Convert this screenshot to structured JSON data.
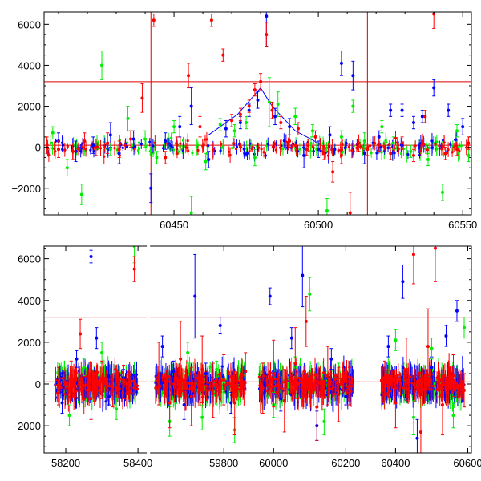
{
  "colors": {
    "red": "#ff0000",
    "green": "#00ee00",
    "blue": "#0000ff",
    "ref": "#dd0000",
    "axis": "#000000"
  },
  "chart_data": [
    {
      "type": "scatter",
      "title": "",
      "xlabel": "",
      "ylabel": "",
      "xlim": [
        60405,
        60553
      ],
      "ylim": [
        -3300,
        6600
      ],
      "x_ticks": [
        60450,
        60500,
        60550
      ],
      "y_ticks": [
        -2000,
        0,
        2000,
        4000,
        6000
      ],
      "hlines": [
        100,
        3200
      ],
      "vlines": [
        60442,
        60517
      ],
      "error_bars": true,
      "series": [
        {
          "color": "blue",
          "x": [
            60410,
            60416,
            60422,
            60428,
            60431,
            60436,
            60442,
            60447,
            60452,
            60456,
            60462,
            60468,
            60473,
            60476,
            60479,
            60482,
            60485,
            60490,
            60495,
            60500,
            60504,
            60508,
            60512,
            60516,
            60521,
            60525,
            60529,
            60533,
            60536,
            60540,
            60545,
            60550
          ],
          "y": [
            300,
            -200,
            100,
            600,
            -300,
            400,
            -2000,
            300,
            1000,
            2000,
            -600,
            900,
            1200,
            1800,
            2300,
            6400,
            1500,
            1000,
            -400,
            -100,
            600,
            4100,
            3500,
            -300,
            500,
            1800,
            1800,
            1200,
            1500,
            2900,
            1800,
            1000
          ],
          "err": [
            400,
            500,
            400,
            600,
            500,
            400,
            700,
            400,
            500,
            900,
            400,
            400,
            300,
            300,
            400,
            1500,
            400,
            400,
            600,
            400,
            400,
            600,
            700,
            500,
            300,
            300,
            300,
            300,
            300,
            400,
            300,
            400
          ]
        },
        {
          "color": "green",
          "x": [
            60408,
            60413,
            60418,
            60425,
            60428,
            60434,
            60440,
            60444,
            60450,
            60456,
            60461,
            60466,
            60471,
            60475,
            60478,
            60483,
            60486,
            60492,
            60498,
            60503,
            60508,
            60512,
            60516,
            60522,
            60526,
            60532,
            60538,
            60543,
            60548,
            60552
          ],
          "y": [
            700,
            -1000,
            -2300,
            4000,
            -100,
            1400,
            400,
            -500,
            1000,
            -3200,
            -700,
            1100,
            800,
            1200,
            -500,
            2200,
            2100,
            1500,
            800,
            -3100,
            500,
            2000,
            300,
            1000,
            200,
            -200,
            -600,
            -2200,
            800,
            -400
          ],
          "err": [
            300,
            400,
            500,
            700,
            300,
            600,
            400,
            300,
            300,
            800,
            400,
            300,
            300,
            300,
            400,
            1200,
            600,
            400,
            300,
            600,
            300,
            300,
            400,
            300,
            300,
            300,
            300,
            400,
            300,
            300
          ]
        },
        {
          "color": "red",
          "x": [
            60406,
            60410,
            60415,
            60419,
            60423,
            60427,
            60431,
            60435,
            60439,
            60443,
            60447,
            60451,
            60455,
            60459,
            60463,
            60467,
            60470,
            60473,
            60476,
            60478,
            60480,
            60482,
            60484,
            60487,
            60490,
            60493,
            60496,
            60499,
            60502,
            60505,
            60508,
            60511,
            60514,
            60517,
            60521,
            60525,
            60529,
            60533,
            60537,
            60540,
            60544,
            60548,
            60552
          ],
          "y": [
            100,
            -100,
            -200,
            300,
            0,
            200,
            -100,
            400,
            2400,
            6200,
            -500,
            100,
            3500,
            1000,
            6200,
            4500,
            1300,
            1600,
            2000,
            2800,
            3200,
            5500,
            1800,
            1200,
            300,
            900,
            -100,
            500,
            -300,
            -1200,
            -400,
            -3200,
            200,
            -100,
            100,
            -300,
            200,
            -400,
            1500,
            6500,
            -300,
            -100,
            200
          ],
          "err": [
            400,
            400,
            400,
            400,
            400,
            500,
            400,
            400,
            700,
            300,
            300,
            400,
            600,
            500,
            300,
            300,
            300,
            300,
            300,
            300,
            400,
            600,
            400,
            300,
            300,
            300,
            300,
            300,
            300,
            500,
            400,
            1000,
            400,
            300,
            300,
            300,
            300,
            300,
            300,
            700,
            300,
            300,
            300
          ]
        }
      ]
    },
    {
      "type": "scatter",
      "title": "",
      "xlabel": "",
      "ylabel": "",
      "xlim": [
        58120,
        60620
      ],
      "ylim": [
        -3300,
        6600
      ],
      "x_ticks": [
        58200,
        58400,
        59800,
        60000,
        60200,
        60400,
        60600
      ],
      "y_ticks": [
        -2000,
        0,
        2000,
        4000,
        6000
      ],
      "hlines": [
        100,
        3200
      ],
      "broken_axis": true,
      "segments": [
        [
          58140,
          58420
        ],
        [
          59600,
          59870
        ],
        [
          59950,
          60240
        ],
        [
          60320,
          60610
        ]
      ],
      "observing_seasons": [
        [
          58170,
          58400
        ],
        [
          59610,
          59860
        ],
        [
          59960,
          60220
        ],
        [
          60360,
          60590
        ]
      ],
      "error_bars": true,
      "series": [
        {
          "color": "blue",
          "x": [
            58190,
            58230,
            58270,
            58285,
            58320,
            58360,
            59630,
            59660,
            59690,
            59720,
            59750,
            59790,
            59820,
            59990,
            60020,
            60050,
            60080,
            60120,
            60160,
            60200,
            60380,
            60420,
            60460,
            60500,
            60540,
            60570
          ],
          "y": [
            -900,
            1200,
            6100,
            2200,
            -600,
            300,
            1800,
            600,
            -1000,
            4200,
            500,
            2800,
            -900,
            4200,
            -700,
            2200,
            5200,
            -2000,
            1200,
            -600,
            1800,
            4900,
            -2600,
            800,
            2300,
            3500
          ],
          "err": [
            500,
            400,
            300,
            500,
            400,
            400,
            500,
            500,
            700,
            2000,
            500,
            400,
            500,
            400,
            600,
            500,
            1500,
            700,
            500,
            400,
            500,
            800,
            900,
            500,
            500,
            500
          ]
        },
        {
          "color": "green",
          "x": [
            58210,
            58250,
            58300,
            58340,
            58390,
            59650,
            59700,
            59740,
            59780,
            59830,
            60000,
            60060,
            60100,
            60140,
            60180,
            60400,
            60450,
            60500,
            60560,
            60590
          ],
          "y": [
            -1500,
            800,
            1500,
            -1200,
            6600,
            -1800,
            1500,
            -1600,
            700,
            -2200,
            -1000,
            800,
            4300,
            -1800,
            600,
            2100,
            -1600,
            1700,
            -1500,
            2700
          ],
          "err": [
            500,
            400,
            500,
            500,
            800,
            700,
            500,
            600,
            400,
            600,
            600,
            500,
            800,
            600,
            400,
            500,
            800,
            500,
            600,
            500
          ]
        },
        {
          "color": "red",
          "x": [
            58180,
            58215,
            58240,
            58270,
            58300,
            58330,
            58360,
            58390,
            59620,
            59650,
            59680,
            59710,
            59740,
            59770,
            59800,
            59830,
            59860,
            59970,
            60000,
            60030,
            60060,
            60090,
            60120,
            60150,
            60180,
            60210,
            60370,
            60400,
            60430,
            60450,
            60470,
            60490,
            60510,
            60530,
            60560,
            60590
          ],
          "y": [
            -100,
            300,
            2400,
            -700,
            200,
            -300,
            100,
            5500,
            500,
            -900,
            1200,
            -600,
            700,
            -300,
            200,
            -900,
            600,
            -200,
            500,
            -800,
            1000,
            3000,
            -1100,
            400,
            -500,
            -100,
            300,
            -900,
            700,
            6200,
            -2300,
            1800,
            6500,
            -1000,
            400,
            -300
          ],
          "err": [
            900,
            800,
            700,
            1000,
            900,
            800,
            800,
            600,
            1500,
            1200,
            1800,
            1400,
            1600,
            1300,
            1200,
            1500,
            900,
            1200,
            1600,
            1500,
            1700,
            1200,
            1600,
            1400,
            1300,
            900,
            800,
            1200,
            1500,
            1400,
            2000,
            1800,
            1600,
            1400,
            1000,
            800
          ]
        }
      ]
    }
  ]
}
